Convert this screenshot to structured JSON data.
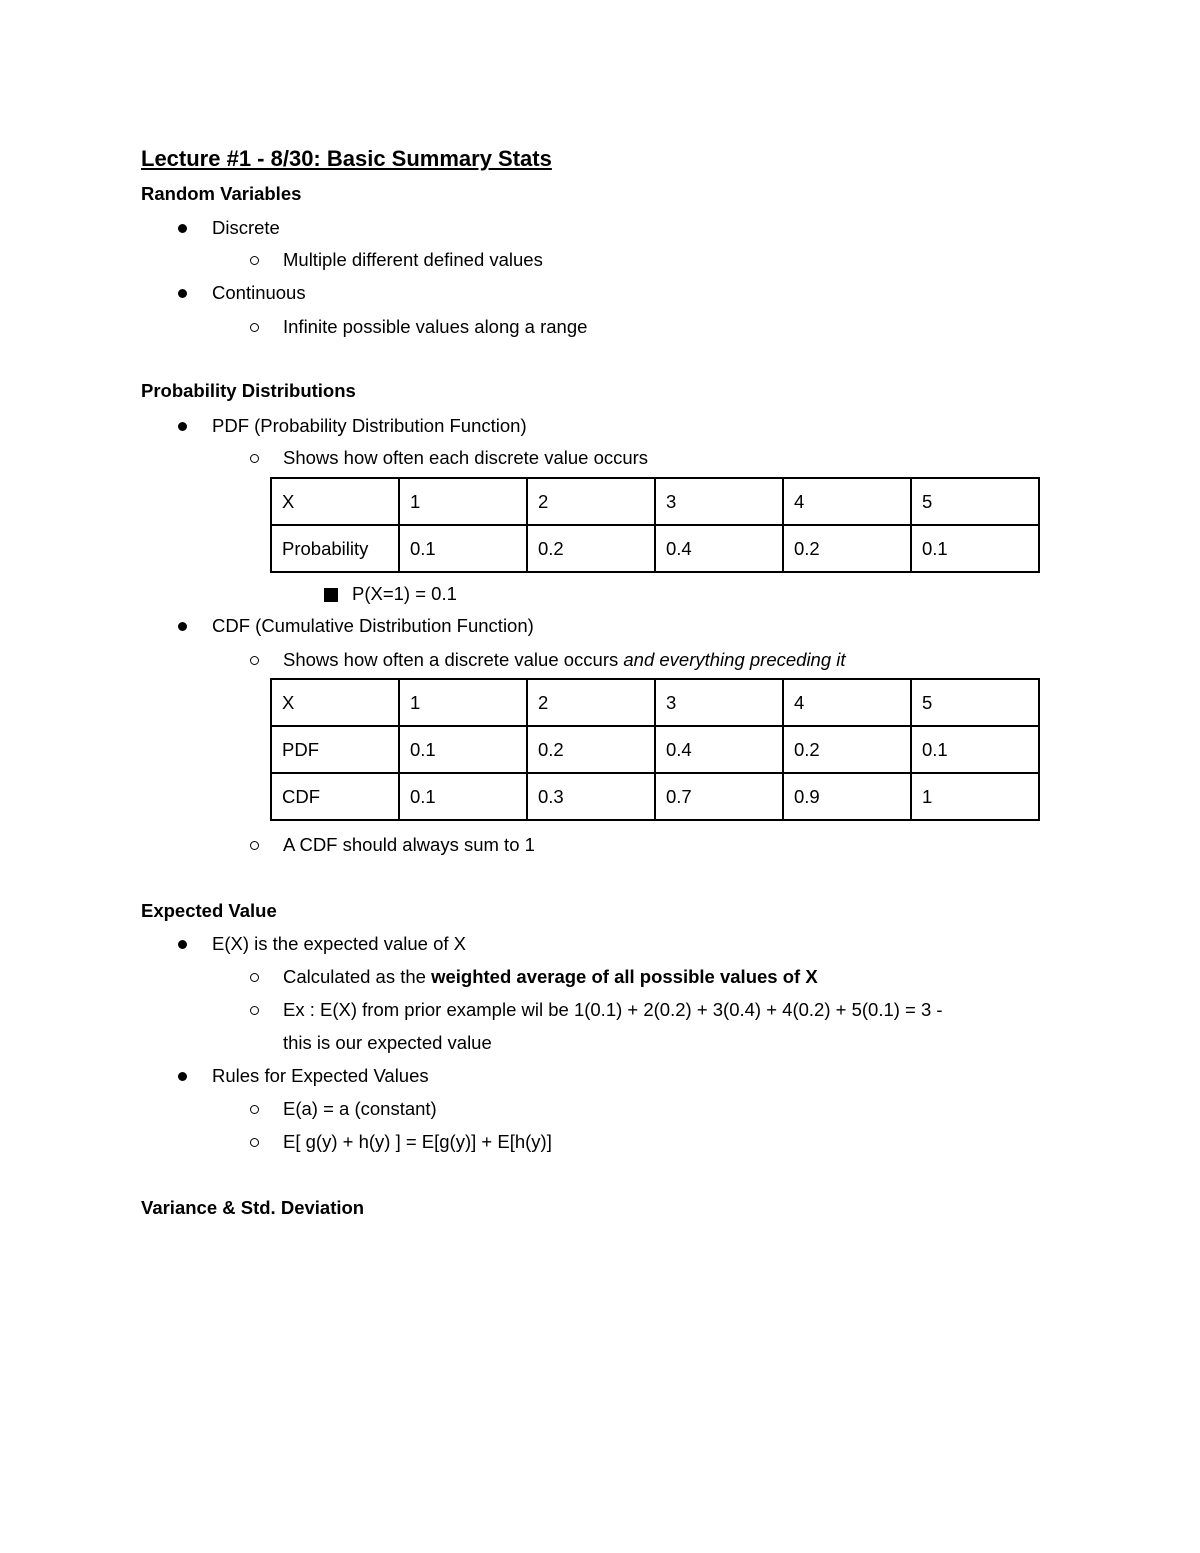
{
  "title": "Lecture #1 - 8/30: Basic Summary Stats",
  "random_variables": {
    "heading": "Random Variables",
    "discrete": "Discrete",
    "discrete_sub": "Multiple different defined values",
    "continuous": "Continuous",
    "continuous_sub": "Infinite possible values along a range"
  },
  "prob_dist": {
    "heading": "Probability Distributions",
    "pdf": "PDF (Probability Distribution Function)",
    "pdf_sub": "Shows how often each discrete value occurs",
    "pdf_table": [
      [
        "X",
        "1",
        "2",
        "3",
        "4",
        "5"
      ],
      [
        "Probability",
        "0.1",
        "0.2",
        "0.4",
        "0.2",
        "0.1"
      ]
    ],
    "pdf_example": "P(X=1) = 0.1",
    "cdf": "CDF (Cumulative Distribution Function)",
    "cdf_sub": "Shows how often a discrete value occurs ",
    "cdf_sub_italic": "and everything preceding it",
    "cdf_table": [
      [
        "X",
        "1",
        "2",
        "3",
        "4",
        "5"
      ],
      [
        "PDF",
        "0.1",
        "0.2",
        "0.4",
        "0.2",
        "0.1"
      ],
      [
        "CDF",
        "0.1",
        "0.3",
        "0.7",
        "0.9",
        "1"
      ]
    ],
    "cdf_note": "A CDF should always sum to 1"
  },
  "expected": {
    "heading": "Expected Value",
    "ex": "E(X) is the expected value of X",
    "calc": "Calculated as the ",
    "calc_bold": "weighted average of all possible values of X",
    "example_1": "Ex : E(X) from prior example wil be 1(0.1) + 2(0.2) + 3(0.4) + 4(0.2) + 5(0.1) = 3 -",
    "example_2": "this is our expected value",
    "rules": "Rules for Expected Values",
    "rule_1": "E(a) = a (constant)",
    "rule_2": "E[ g(y) + h(y) ] = E[g(y)] + E[h(y)]"
  },
  "variance": {
    "heading": "Variance & Std. Deviation"
  }
}
